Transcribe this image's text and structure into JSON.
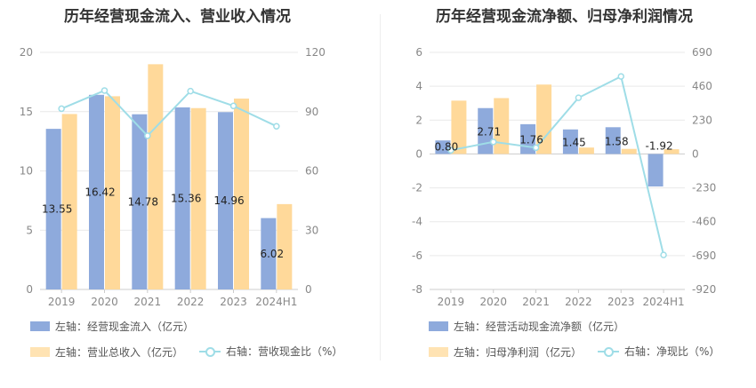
{
  "charts": [
    {
      "title": "历年经营现金流入、营业收入情况",
      "legend": {
        "bar1": "左轴：经营现金流入（亿元）",
        "bar2": "左轴：营业总收入（亿元）",
        "line": "右轴：营收现金比（%）"
      }
    },
    {
      "title": "历年经营现金流净额、归母净利润情况",
      "legend": {
        "bar1": "左轴：经营活动现金流净额（亿元）",
        "bar2": "左轴：归母净利润（亿元）",
        "line": "右轴：净现比（%）"
      }
    }
  ],
  "chart_data": [
    {
      "type": "bar",
      "title": "历年经营现金流入、营业收入情况",
      "categories": [
        "2019",
        "2020",
        "2021",
        "2022",
        "2023",
        "2024H1"
      ],
      "left_axis": {
        "min": 0,
        "max": 20,
        "ticks": [
          "0",
          "5",
          "10",
          "15",
          "20"
        ]
      },
      "right_axis": {
        "min": 0,
        "max": 120,
        "ticks": [
          "0",
          "30",
          "60",
          "90",
          "120"
        ]
      },
      "series": [
        {
          "name": "左轴：经营现金流入（亿元）",
          "axis": "left",
          "kind": "bar",
          "color": "#8eaadc",
          "values": [
            13.55,
            16.42,
            14.78,
            15.36,
            14.96,
            6.02
          ],
          "labels": [
            "13.55",
            "16.42",
            "14.78",
            "15.36",
            "14.96",
            "6.02"
          ]
        },
        {
          "name": "左轴：营业总收入（亿元）",
          "axis": "left",
          "kind": "bar",
          "color": "#ffd99a",
          "values": [
            14.8,
            16.3,
            19.0,
            15.3,
            16.1,
            7.2
          ]
        },
        {
          "name": "右轴：营收现金比（%）",
          "axis": "right",
          "kind": "line",
          "color": "#9fdde7",
          "values": [
            91.5,
            100.7,
            77.8,
            100.4,
            92.9,
            82.6
          ]
        }
      ],
      "grid": true,
      "legend_position": "bottom"
    },
    {
      "type": "bar",
      "title": "历年经营现金流净额、归母净利润情况",
      "categories": [
        "2019",
        "2020",
        "2021",
        "2022",
        "2023",
        "2024H1"
      ],
      "left_axis": {
        "min": -8,
        "max": 6,
        "ticks": [
          "-8",
          "-6",
          "-4",
          "-2",
          "0",
          "2",
          "4",
          "6"
        ]
      },
      "right_axis": {
        "min": -920,
        "max": 690,
        "ticks": [
          "-920",
          "-690",
          "-460",
          "-230",
          "0",
          "230",
          "460",
          "690"
        ]
      },
      "series": [
        {
          "name": "左轴：经营活动现金流净额（亿元）",
          "axis": "left",
          "kind": "bar",
          "color": "#8eaadc",
          "values": [
            0.8,
            2.71,
            1.76,
            1.45,
            1.58,
            -1.92
          ],
          "labels": [
            "0.80",
            "2.71",
            "1.76",
            "1.45",
            "1.58",
            "-1.92"
          ]
        },
        {
          "name": "左轴：归母净利润（亿元）",
          "axis": "left",
          "kind": "bar",
          "color": "#ffd99a",
          "values": [
            3.15,
            3.3,
            4.1,
            0.38,
            0.3,
            0.28
          ]
        },
        {
          "name": "右轴：净现比（%）",
          "axis": "right",
          "kind": "line",
          "color": "#9fdde7",
          "values": [
            25.4,
            82.1,
            42.9,
            381.6,
            526.7,
            -685.7
          ]
        }
      ],
      "grid": true,
      "legend_position": "bottom"
    }
  ]
}
